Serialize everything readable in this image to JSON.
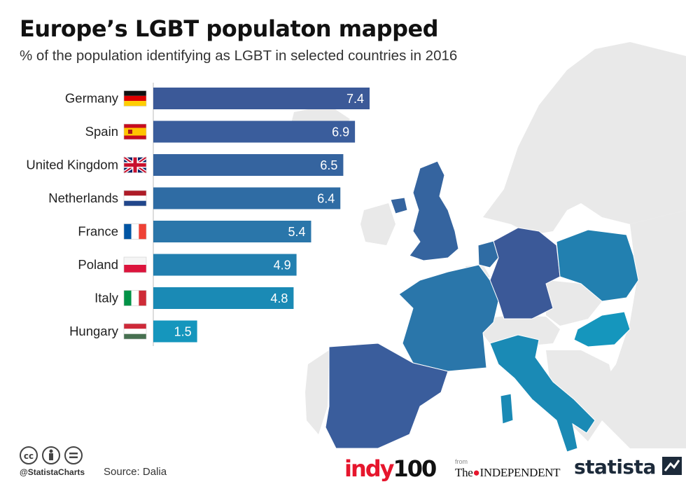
{
  "header": {
    "title": "Europe’s LGBT populaton mapped",
    "subtitle": "% of the population identifying as LGBT in selected countries in 2016"
  },
  "chart_data": {
    "type": "bar",
    "orientation": "horizontal",
    "title": "Europe’s LGBT populaton mapped",
    "subtitle": "% of the population identifying as LGBT in selected countries in 2016",
    "categories": [
      "Germany",
      "Spain",
      "United Kingdom",
      "Netherlands",
      "France",
      "Poland",
      "Italy",
      "Hungary"
    ],
    "values": [
      7.4,
      6.9,
      6.5,
      6.4,
      5.4,
      4.9,
      4.8,
      1.5
    ],
    "value_labels": [
      "7.4",
      "6.9",
      "6.5",
      "6.4",
      "5.4",
      "4.9",
      "4.8",
      "1.5"
    ],
    "bar_colors": [
      "#3b5998",
      "#3a5d9c",
      "#35649f",
      "#2f6ca4",
      "#2a76aa",
      "#2280b0",
      "#1a8ab5",
      "#1596bd"
    ],
    "flags": [
      "germany-flag",
      "spain-flag",
      "uk-flag",
      "netherlands-flag",
      "france-flag",
      "poland-flag",
      "italy-flag",
      "hungary-flag"
    ],
    "xlim": [
      0,
      7.4
    ],
    "grid": false,
    "legend": "none",
    "xlabel": "",
    "ylabel": ""
  },
  "map": {
    "highlighted_countries": [
      "United Kingdom",
      "Netherlands",
      "France",
      "Spain",
      "Germany",
      "Poland",
      "Italy",
      "Hungary"
    ],
    "country_colors": {
      "United Kingdom": "#35649f",
      "Netherlands": "#2f6ca4",
      "France": "#2a76aa",
      "Spain": "#3a5d9c",
      "Germany": "#3b5998",
      "Poland": "#2280b0",
      "Italy": "#1a8ab5",
      "Hungary": "#1596bd"
    },
    "base_color": "#e9e9e9"
  },
  "footer": {
    "license_icons": [
      "cc-icon",
      "attribution-icon",
      "no-derivatives-icon"
    ],
    "license_glyphs": [
      "cc",
      "i",
      "="
    ],
    "handle": "@StatistaCharts",
    "source": "Source: Dalia",
    "brands": {
      "indy_a": "indy",
      "indy_b": "100",
      "from": "from",
      "independent_prefix": "The",
      "independent_name": "INDEPENDENT",
      "statista": "statista"
    }
  }
}
